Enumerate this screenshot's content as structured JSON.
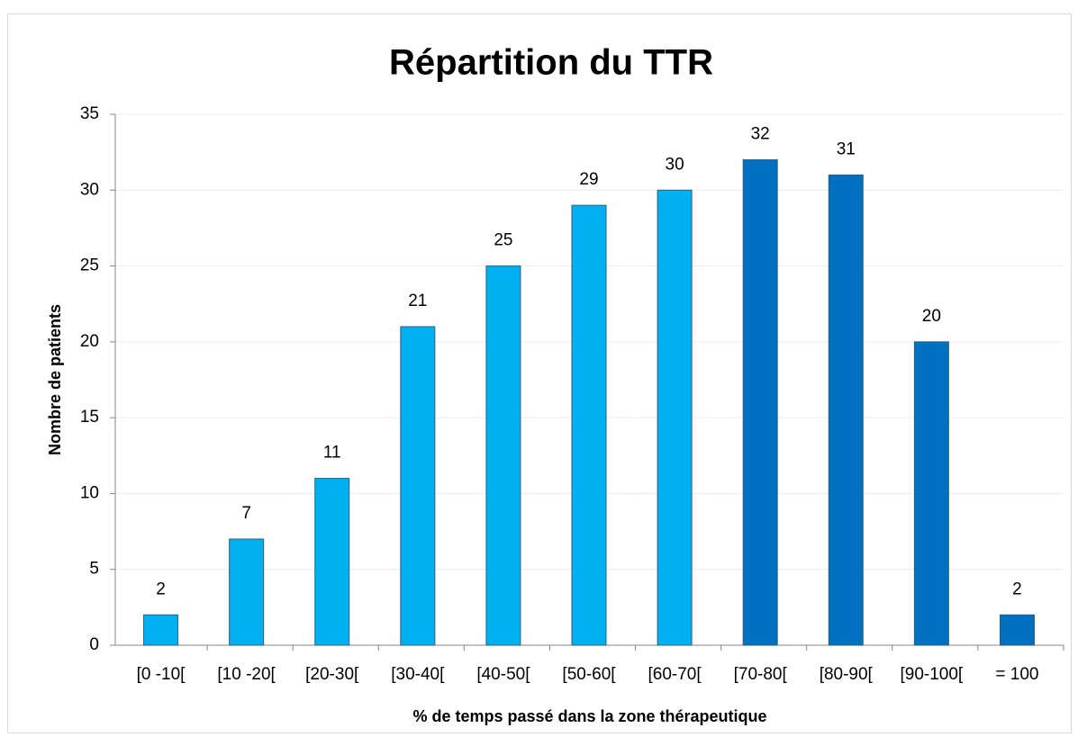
{
  "chart_data": {
    "type": "bar",
    "title": "Répartition du TTR",
    "x_label": "% de temps passé dans la zone thérapeutique",
    "y_label": "Nombre de patients",
    "categories": [
      "[0 -10[",
      "[10 -20[",
      "[20-30[",
      "[30-40[",
      "[40-50[",
      "[50-60[",
      "[60-70[",
      "[70-80[",
      "[80-90[",
      "[90-100[",
      "= 100"
    ],
    "values": [
      2,
      7,
      11,
      21,
      25,
      29,
      30,
      32,
      31,
      20,
      2
    ],
    "colors": [
      "#00b0f0",
      "#00b0f0",
      "#00b0f0",
      "#00b0f0",
      "#00b0f0",
      "#00b0f0",
      "#00b0f0",
      "#0070c0",
      "#0070c0",
      "#0070c0",
      "#0070c0"
    ],
    "ylim": [
      0,
      35
    ],
    "yticks": [
      0,
      5,
      10,
      15,
      20,
      25,
      30,
      35
    ],
    "grid": true
  }
}
